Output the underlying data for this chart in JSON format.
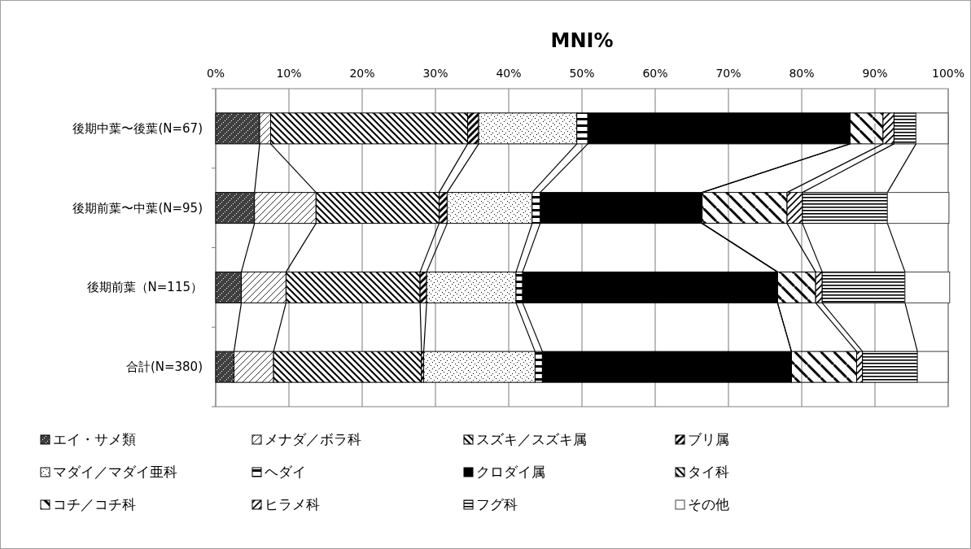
{
  "chart_data": {
    "type": "bar",
    "orientation": "horizontal",
    "stacked": true,
    "title": "MNI%",
    "categories": [
      "後期中葉〜後葉(N=67)",
      "後期前葉〜中葉(N=95)",
      "後期前葉（N=115）",
      "合計(N=380)"
    ],
    "xlim": [
      0,
      100
    ],
    "xticks": [
      {
        "value": 0,
        "label": "0%"
      },
      {
        "value": 10,
        "label": "10%"
      },
      {
        "value": 20,
        "label": "20%"
      },
      {
        "value": 30,
        "label": "30%"
      },
      {
        "value": 40,
        "label": "40%"
      },
      {
        "value": 50,
        "label": "50%"
      },
      {
        "value": 60,
        "label": "60%"
      },
      {
        "value": 70,
        "label": "70%"
      },
      {
        "value": 80,
        "label": "80%"
      },
      {
        "value": 90,
        "label": "90%"
      },
      {
        "value": 100,
        "label": "100%"
      }
    ],
    "grid": "x",
    "legend": "bottom",
    "series": [
      {
        "name": "エイ・サメ類",
        "color": "#000000",
        "values": [
          6.0,
          5.3,
          3.5,
          2.5
        ]
      },
      {
        "name": "メナダ／ボラ科",
        "color": "#000000",
        "values": [
          1.5,
          8.4,
          6.1,
          5.4
        ]
      },
      {
        "name": "スズキ／スズキ属",
        "color": "#000000",
        "values": [
          26.9,
          16.8,
          18.3,
          20.2
        ]
      },
      {
        "name": "ブリ属",
        "color": "#000000",
        "values": [
          1.5,
          1.1,
          0.9,
          0.3
        ]
      },
      {
        "name": "マダイ／マダイ亜科",
        "color": "#000000",
        "values": [
          13.4,
          11.6,
          12.2,
          15.2
        ]
      },
      {
        "name": "ヘダイ",
        "color": "#000000",
        "values": [
          1.5,
          1.1,
          0.9,
          1.0
        ]
      },
      {
        "name": "クロダイ属",
        "color": "#000000",
        "values": [
          35.8,
          22.1,
          34.8,
          34.0
        ]
      },
      {
        "name": "タイ科",
        "color": "#000000",
        "values": [
          0,
          0,
          0,
          0
        ]
      },
      {
        "name": "コチ／コチ科",
        "color": "#000000",
        "values": [
          4.5,
          11.6,
          5.2,
          8.9
        ]
      },
      {
        "name": "ヒラメ科",
        "color": "#000000",
        "values": [
          1.5,
          2.1,
          0.9,
          0.8
        ]
      },
      {
        "name": "フグ科",
        "color": "#000000",
        "values": [
          3.0,
          11.6,
          11.3,
          7.5
        ]
      },
      {
        "name": "その他",
        "color": "#ffffff",
        "values": [
          4.4,
          8.4,
          6.1,
          4.2
        ]
      }
    ]
  }
}
